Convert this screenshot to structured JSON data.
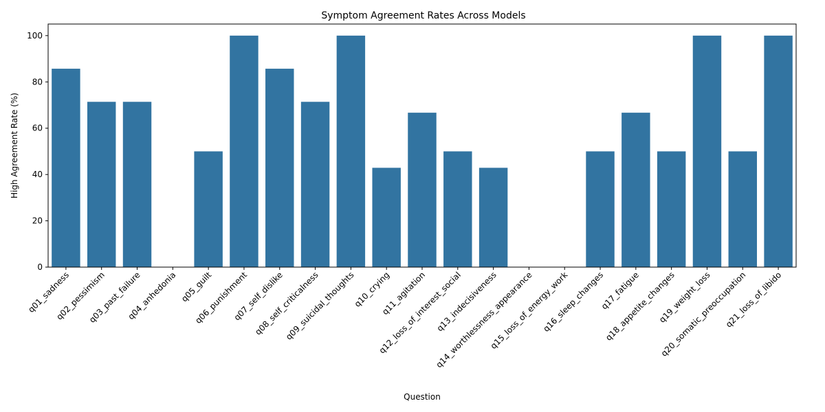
{
  "chart_data": {
    "type": "bar",
    "title": "Symptom Agreement Rates Across Models",
    "xlabel": "Question",
    "ylabel": "High Agreement Rate (%)",
    "ylim": [
      0,
      105
    ],
    "yticks": [
      0,
      20,
      40,
      60,
      80,
      100
    ],
    "bar_color": "#3274a1",
    "grid": false,
    "categories": [
      "q01_sadness",
      "q02_pessimism",
      "q03_past_failure",
      "q04_anhedonia",
      "q05_guilt",
      "q06_punishment",
      "q07_self_dislike",
      "q08_self_criticalness",
      "q09_suicidal_thoughts",
      "q10_crying",
      "q11_agitation",
      "q12_loss_of_interest_social",
      "q13_indecisiveness",
      "q14_worthlessness_appearance",
      "q15_loss_of_energy_work",
      "q16_sleep_changes",
      "q17_fatigue",
      "q18_appetite_changes",
      "q19_weight_loss",
      "q20_somatic_preoccupation",
      "q21_loss_of_libido"
    ],
    "values": [
      85.7,
      71.4,
      71.4,
      0,
      50,
      100,
      85.7,
      71.4,
      100,
      42.9,
      66.7,
      50,
      42.9,
      0,
      0,
      50,
      66.7,
      50,
      100,
      50,
      100
    ]
  }
}
